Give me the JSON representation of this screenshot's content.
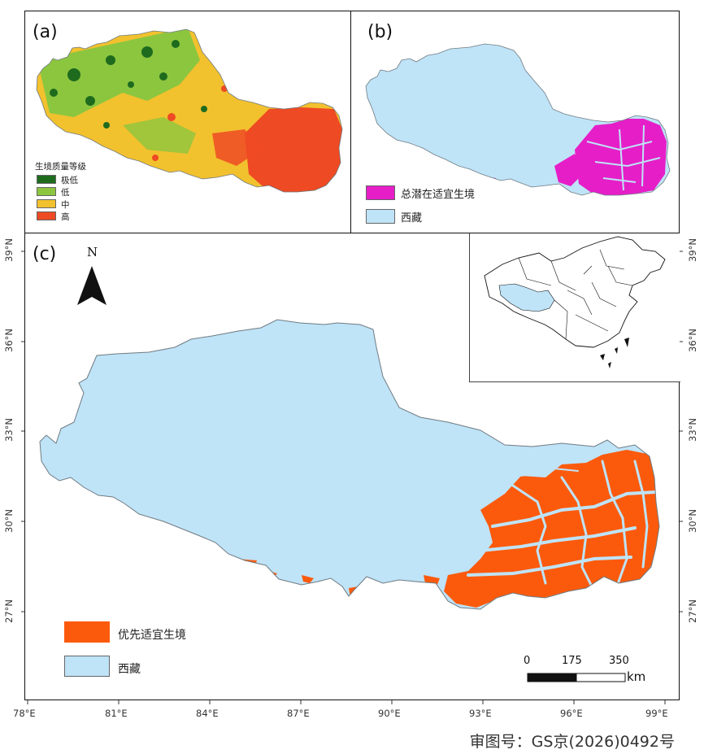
{
  "panels": {
    "a": {
      "label": "(a)",
      "legend_title": "生境质量等级",
      "legend": [
        {
          "label": "极低",
          "color": "#1e6b1e"
        },
        {
          "label": "低",
          "color": "#8cc63f"
        },
        {
          "label": "中",
          "color": "#f2c12e"
        },
        {
          "label": "高",
          "color": "#ee4a23"
        }
      ]
    },
    "b": {
      "label": "(b)",
      "legend": [
        {
          "label": "总潜在适宜生境",
          "color": "#e61ec8"
        },
        {
          "label": "西藏",
          "color": "#bfe3f7"
        }
      ]
    },
    "c": {
      "label": "(c)",
      "north": "N",
      "legend": [
        {
          "label": "优先适宜生境",
          "color": "#fb5a0c"
        },
        {
          "label": "西藏",
          "color": "#bfe3f7"
        }
      ],
      "scale": {
        "ticks": [
          "0",
          "175",
          "350"
        ],
        "unit": "km"
      },
      "lat_ticks": [
        "39°N",
        "36°N",
        "33°N",
        "30°N",
        "27°N"
      ],
      "lon_ticks": [
        "78°E",
        "81°E",
        "84°E",
        "87°E",
        "90°E",
        "93°E",
        "96°E",
        "99°E"
      ]
    }
  },
  "approval_number": "审图号：GS京(2026)0492号",
  "colors": {
    "tibet_fill": "#bfe3f7",
    "outline": "#6f7b82"
  }
}
